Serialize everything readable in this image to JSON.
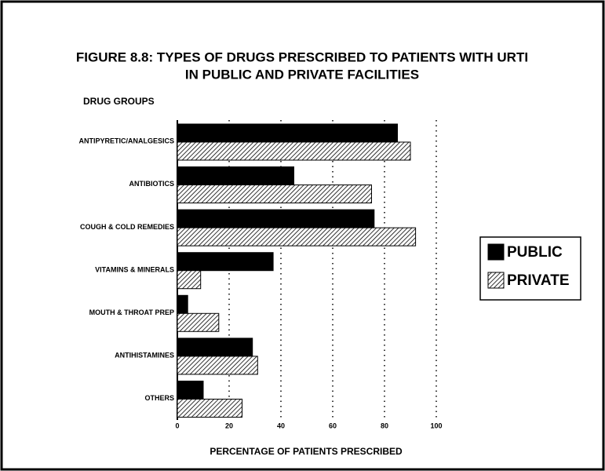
{
  "chart_data": {
    "type": "hbar",
    "title": "FIGURE 8.8: TYPES OF DRUGS PRESCRIBED TO PATIENTS WITH URTI",
    "subtitle": "IN PUBLIC AND PRIVATE FACILITIES",
    "ylabel": "DRUG GROUPS",
    "xlabel": "PERCENTAGE OF PATIENTS PRESCRIBED",
    "categories": [
      "ANTIPYRETIC/ANALGESICS",
      "ANTIBIOTICS",
      "COUGH & COLD REMEDIES",
      "VITAMINS & MINERALS",
      "MOUTH & THROAT PREP",
      "ANTIHISTAMINES",
      "OTHERS"
    ],
    "series": [
      {
        "name": "PUBLIC",
        "color": "#000000",
        "values": [
          85,
          45,
          76,
          37,
          4,
          29,
          10
        ]
      },
      {
        "name": "PRIVATE",
        "color": "hatch",
        "values": [
          90,
          75,
          92,
          9,
          16,
          31,
          25
        ]
      }
    ],
    "xlim": [
      0,
      100
    ],
    "xticks": [
      0,
      20,
      40,
      60,
      80,
      100
    ],
    "grid": true,
    "legend": "right"
  }
}
